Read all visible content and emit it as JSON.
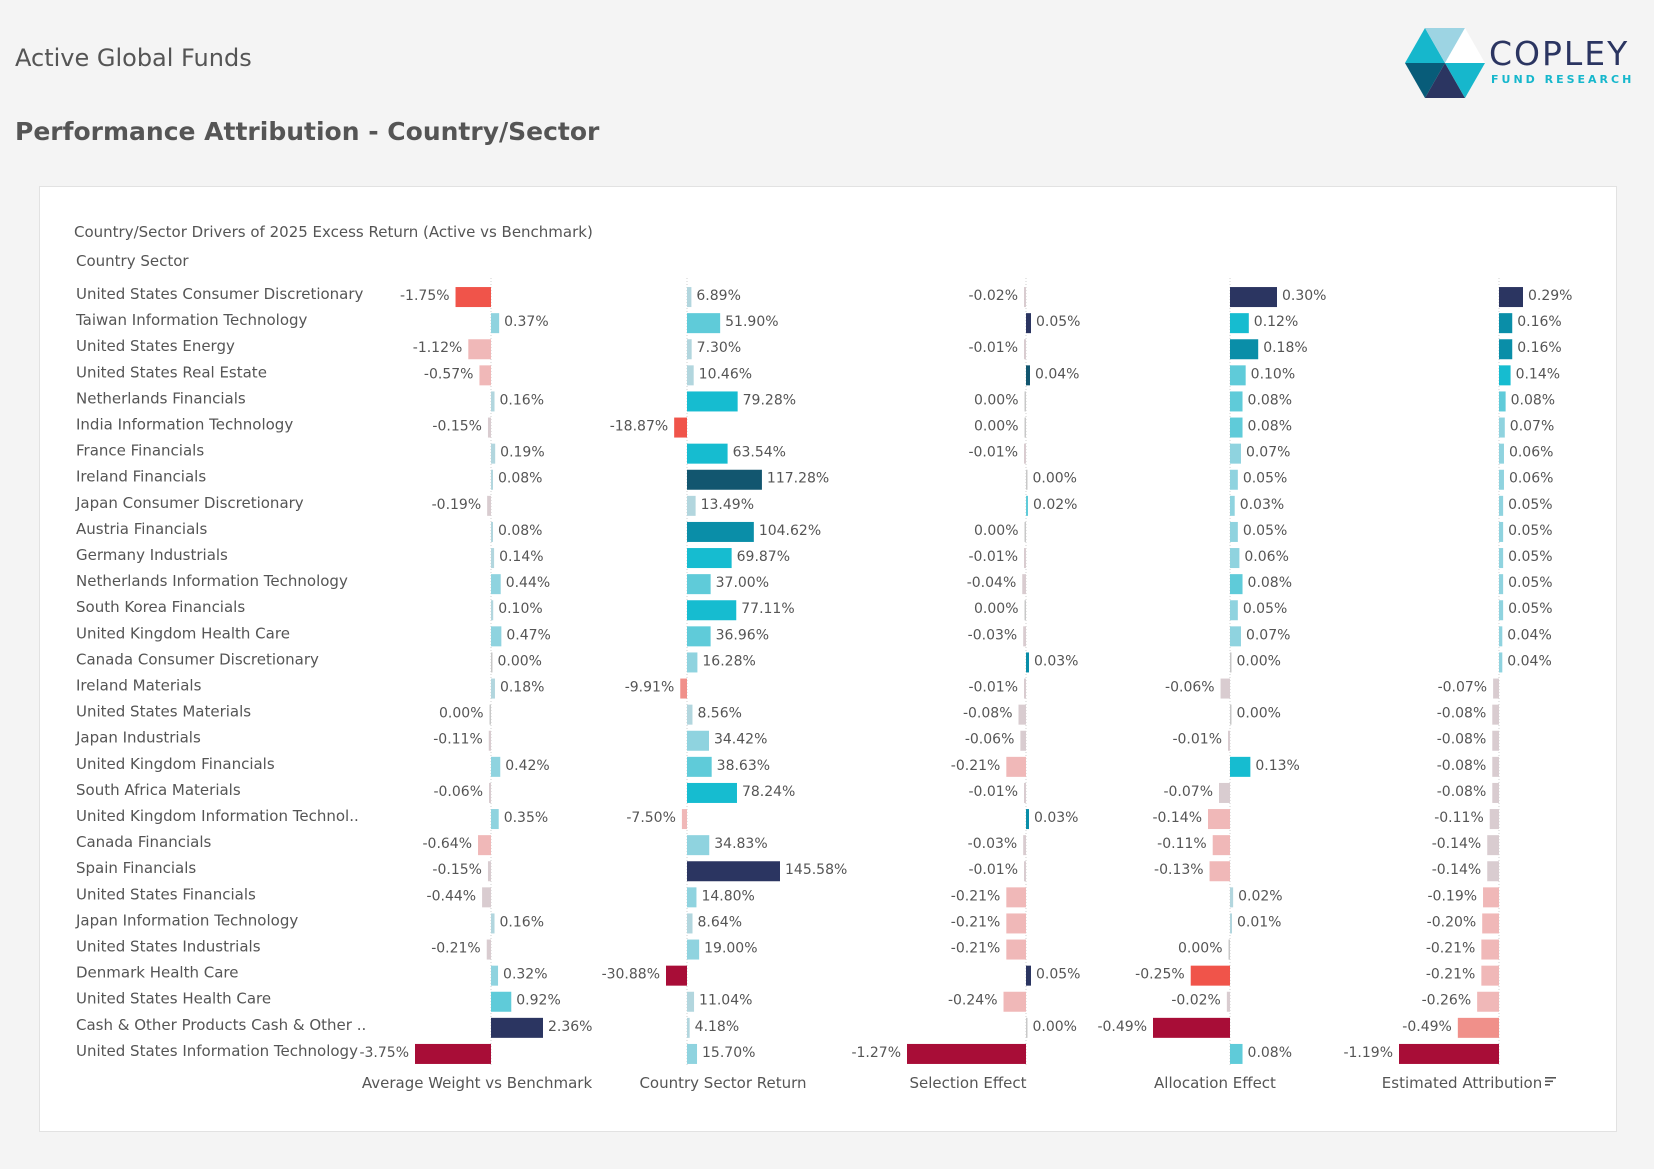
{
  "header": {
    "title": "Active Global Funds",
    "subtitle": "Performance Attribution - Country/Sector"
  },
  "logo": {
    "name": "COPLEY",
    "tagline": "FUND RESEARCH",
    "colors": [
      "#16b7cc",
      "#9dd4e3",
      "#ffffff",
      "#085c79",
      "#2b3561",
      "#16b7cc"
    ]
  },
  "chart_data": {
    "type": "bar",
    "title": "Country/Sector Drivers of 2025 Excess Return (Active vs Benchmark)",
    "row_header": "Country Sector",
    "sort_indicator": "Estimated Attribution",
    "categories": [
      "United States Consumer Discretionary",
      "Taiwan Information Technology",
      "United States Energy",
      "United States Real Estate",
      "Netherlands Financials",
      "India Information Technology",
      "France Financials",
      "Ireland Financials",
      "Japan Consumer Discretionary",
      "Austria Financials",
      "Germany Industrials",
      "Netherlands Information Technology",
      "South Korea Financials",
      "United Kingdom Health Care",
      "Canada Consumer Discretionary",
      "Ireland Materials",
      "United States Materials",
      "Japan Industrials",
      "United Kingdom Financials",
      "South Africa Materials",
      "United Kingdom Information Technol..",
      "Canada Financials",
      "Spain Financials",
      "United States Financials",
      "Japan Information Technology",
      "United States Industrials",
      "Denmark Health Care",
      "United States Health Care",
      "Cash & Other Products Cash & Other ..",
      "United States Information Technology"
    ],
    "series": [
      {
        "name": "Average Weight vs Benchmark",
        "unit": "%",
        "values": [
          -1.75,
          0.37,
          -1.12,
          -0.57,
          0.16,
          -0.15,
          0.19,
          0.08,
          -0.19,
          0.08,
          0.14,
          0.44,
          0.1,
          0.47,
          0.0,
          0.18,
          0.0,
          -0.11,
          0.42,
          -0.06,
          0.35,
          -0.64,
          -0.15,
          -0.44,
          0.16,
          -0.21,
          0.32,
          0.92,
          2.36,
          -3.75
        ],
        "zero_side": [
          "pos",
          "pos",
          "pos",
          "pos",
          "pos",
          "pos",
          "pos",
          "pos",
          "pos",
          "pos",
          "pos",
          "pos",
          "pos",
          "pos",
          "pos",
          "pos",
          "neg",
          "pos",
          "pos",
          "pos",
          "pos",
          "pos",
          "pos",
          "pos",
          "pos",
          "pos",
          "pos",
          "pos",
          "pos",
          "pos"
        ],
        "domain": [
          -3.75,
          2.36
        ]
      },
      {
        "name": "Country Sector Return",
        "unit": "%",
        "values": [
          6.89,
          51.9,
          7.3,
          10.46,
          79.28,
          -18.87,
          63.54,
          117.28,
          13.49,
          104.62,
          69.87,
          37.0,
          77.11,
          36.96,
          16.28,
          -9.91,
          8.56,
          34.42,
          38.63,
          78.24,
          -7.5,
          34.83,
          145.58,
          14.8,
          8.64,
          19.0,
          -30.88,
          11.04,
          4.18,
          15.7
        ],
        "domain": [
          -30.88,
          145.58
        ]
      },
      {
        "name": "Selection Effect",
        "unit": "%",
        "values": [
          -0.02,
          0.05,
          -0.01,
          0.04,
          0.0,
          0.0,
          -0.01,
          0.0,
          0.02,
          0.0,
          -0.01,
          -0.04,
          0.0,
          -0.03,
          0.03,
          -0.01,
          -0.08,
          -0.06,
          -0.21,
          -0.01,
          0.03,
          -0.03,
          -0.01,
          -0.21,
          -0.21,
          -0.21,
          0.05,
          -0.24,
          0.0,
          -1.27
        ],
        "zero_side": [
          "neg",
          "pos",
          "neg",
          "pos",
          "neg",
          "neg",
          "neg",
          "pos",
          "pos",
          "neg",
          "neg",
          "neg",
          "neg",
          "neg",
          "pos",
          "neg",
          "neg",
          "neg",
          "neg",
          "neg",
          "pos",
          "neg",
          "neg",
          "neg",
          "neg",
          "neg",
          "pos",
          "neg",
          "pos",
          "neg"
        ],
        "domain": [
          -1.27,
          0.05
        ]
      },
      {
        "name": "Allocation Effect",
        "unit": "%",
        "values": [
          0.3,
          0.12,
          0.18,
          0.1,
          0.08,
          0.08,
          0.07,
          0.05,
          0.03,
          0.05,
          0.06,
          0.08,
          0.05,
          0.07,
          0.0,
          -0.06,
          0.0,
          -0.01,
          0.13,
          -0.07,
          -0.14,
          -0.11,
          -0.13,
          0.02,
          0.01,
          0.0,
          -0.25,
          -0.02,
          -0.49,
          0.08
        ],
        "zero_side": [
          "pos",
          "pos",
          "pos",
          "pos",
          "pos",
          "pos",
          "pos",
          "pos",
          "pos",
          "pos",
          "pos",
          "pos",
          "pos",
          "pos",
          "pos",
          "neg",
          "pos",
          "neg",
          "pos",
          "neg",
          "neg",
          "neg",
          "neg",
          "pos",
          "pos",
          "neg",
          "neg",
          "neg",
          "neg",
          "pos"
        ],
        "domain": [
          -0.49,
          0.3
        ]
      },
      {
        "name": "Estimated Attribution",
        "unit": "%",
        "values": [
          0.29,
          0.16,
          0.16,
          0.14,
          0.08,
          0.07,
          0.06,
          0.06,
          0.05,
          0.05,
          0.05,
          0.05,
          0.05,
          0.04,
          0.04,
          -0.07,
          -0.08,
          -0.08,
          -0.08,
          -0.08,
          -0.11,
          -0.14,
          -0.14,
          -0.19,
          -0.2,
          -0.21,
          -0.21,
          -0.26,
          -0.49,
          -1.19
        ],
        "domain": [
          -1.19,
          0.29
        ]
      }
    ],
    "color_scale": {
      "positive_low": "#a9d3dc",
      "positive_mid": "#5fcbd9",
      "positive_high": "#16bcd0",
      "positive_higher": "#0a8ea8",
      "positive_max": "#2b3561",
      "zero": "#c8c8c8",
      "negative_low": "#d9ccd0",
      "negative_mid": "#f0b8b8",
      "negative_high": "#f0544a",
      "negative_max": "#a80d37"
    },
    "grid": false,
    "legend": "none"
  }
}
